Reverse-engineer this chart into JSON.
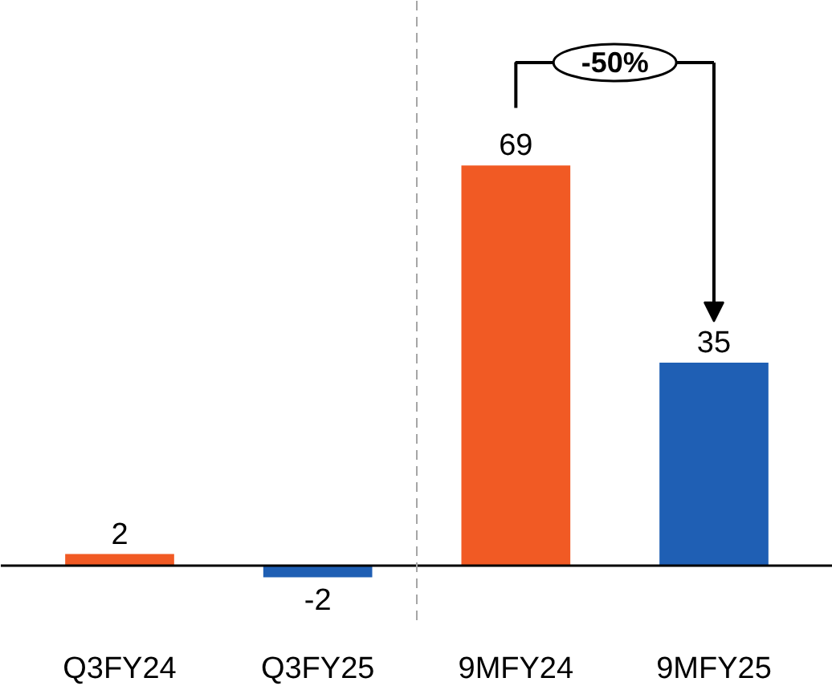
{
  "chart_data": {
    "type": "bar",
    "categories": [
      "Q3FY24",
      "Q3FY25",
      "9MFY24",
      "9MFY25"
    ],
    "values": [
      2,
      -2,
      69,
      35
    ],
    "colors": [
      "#f15a24",
      "#1f5fb4",
      "#f15a24",
      "#1f5fb4"
    ],
    "data_labels": true,
    "annotations": [
      "-50%"
    ]
  }
}
